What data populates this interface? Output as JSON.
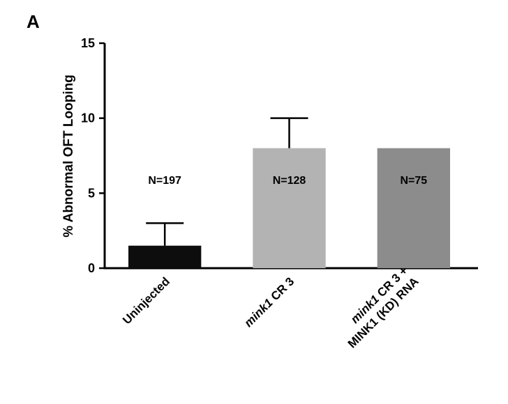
{
  "panel_label": "A",
  "chart_data": {
    "type": "bar",
    "title": "",
    "xlabel": "",
    "ylabel": "% Abnormal OFT Looping",
    "ylim": [
      0,
      15
    ],
    "yticks": [
      0,
      5,
      10,
      15
    ],
    "grid": false,
    "legend": "none",
    "categories": [
      "Uninjected",
      "mink1 CR 3",
      "mink1 CR 3 +\nMINK1 (KD) RNA"
    ],
    "category_italic_prefix": [
      "",
      "mink1",
      "mink1"
    ],
    "values": [
      1.5,
      8.0,
      8.0
    ],
    "error_upper": [
      1.5,
      2.0,
      0
    ],
    "data_labels": [
      "N=197",
      "N=128",
      "N=75"
    ],
    "colors": [
      "#0d0d0d",
      "#b3b3b3",
      "#8c8c8c"
    ],
    "label_colors": [
      "#000000",
      "#000000",
      "#000000"
    ]
  }
}
